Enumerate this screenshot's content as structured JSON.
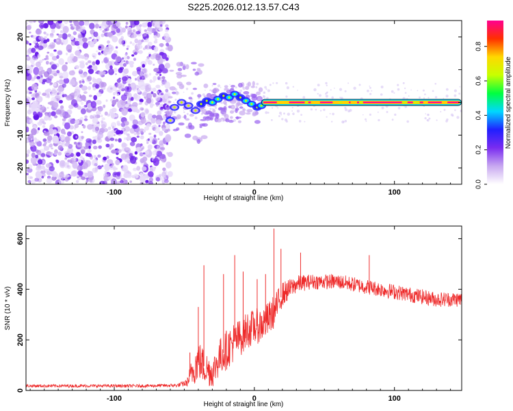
{
  "figure_title": "S225.2026.012.13.57.C43",
  "chart_data": [
    {
      "type": "heatmap",
      "title": "S225.2026.012.13.57.C43",
      "xlabel": "Height of straight line (km)",
      "ylabel": "Frequency (Hz)",
      "xlim": [
        -163,
        148
      ],
      "ylim": [
        -25,
        25
      ],
      "xticks": [
        -100,
        0,
        100
      ],
      "yticks": [
        -20,
        -10,
        0,
        10,
        20
      ],
      "noise_region_x": [
        -163,
        -60
      ],
      "transition_region_x": [
        -60,
        5
      ],
      "signal_line": {
        "frequency_hz": 0,
        "x_range": [
          5,
          148
        ],
        "amplitude": 0.93
      },
      "track_points": [
        {
          "x": -60,
          "y": -5.5
        },
        {
          "x": -57,
          "y": -1.5
        },
        {
          "x": -52,
          "y": 0
        },
        {
          "x": -47,
          "y": -1
        },
        {
          "x": -42,
          "y": -2.5
        },
        {
          "x": -38,
          "y": -0.5
        },
        {
          "x": -34,
          "y": 0.5
        },
        {
          "x": -30,
          "y": 0
        },
        {
          "x": -26,
          "y": 1
        },
        {
          "x": -22,
          "y": 2
        },
        {
          "x": -18,
          "y": 1.5
        },
        {
          "x": -14,
          "y": 2.5
        },
        {
          "x": -10,
          "y": 1.5
        },
        {
          "x": -6,
          "y": 0.5
        },
        {
          "x": -2,
          "y": -0.5
        },
        {
          "x": 2,
          "y": -1.5
        },
        {
          "x": 5,
          "y": -1
        },
        {
          "x": 8,
          "y": 0
        }
      ],
      "colorbar": {
        "label": "Normalized spectral amplitude",
        "range": [
          0,
          0.95
        ],
        "ticks": [
          0.0,
          0.2,
          0.4,
          0.6,
          0.8
        ],
        "tick_labels": [
          "0.0",
          "0.2",
          "0.4",
          "0.6",
          "0.8"
        ],
        "colormap": [
          "#ffffff",
          "#c8a8f0",
          "#7a2cf0",
          "#2020ff",
          "#00d8ff",
          "#00ff40",
          "#c8ff00",
          "#ffd800",
          "#ff3000",
          "#ff0090"
        ]
      }
    },
    {
      "type": "line",
      "xlabel": "Height of straight line (km)",
      "ylabel": "SNR (10 * v/v)",
      "xlim": [
        -163,
        148
      ],
      "ylim": [
        0,
        650
      ],
      "xticks": [
        -100,
        0,
        100
      ],
      "yticks": [
        0,
        200,
        400,
        600
      ],
      "series": [
        {
          "name": "SNR",
          "color": "#ee2a2a",
          "envelope_x": [
            -163,
            -120,
            -80,
            -55,
            -48,
            -44,
            -40,
            -35,
            -30,
            -25,
            -20,
            -15,
            -10,
            -5,
            0,
            5,
            10,
            15,
            20,
            25,
            30,
            40,
            50,
            60,
            70,
            80,
            90,
            100,
            110,
            120,
            130,
            140,
            148
          ],
          "envelope_center": [
            18,
            18,
            18,
            20,
            30,
            80,
            120,
            90,
            70,
            130,
            160,
            190,
            210,
            240,
            250,
            260,
            280,
            320,
            380,
            400,
            420,
            430,
            430,
            430,
            420,
            410,
            400,
            390,
            380,
            370,
            360,
            360,
            360
          ],
          "envelope_spread": [
            12,
            12,
            12,
            14,
            30,
            130,
            160,
            140,
            120,
            150,
            160,
            160,
            150,
            150,
            140,
            140,
            140,
            130,
            100,
            80,
            70,
            60,
            60,
            60,
            60,
            60,
            60,
            60,
            60,
            60,
            60,
            60,
            60
          ],
          "spikes": [
            {
              "x": -36,
              "y": 495
            },
            {
              "x": -40,
              "y": 330
            },
            {
              "x": -22,
              "y": 460
            },
            {
              "x": -14,
              "y": 535
            },
            {
              "x": 14,
              "y": 640
            },
            {
              "x": 19,
              "y": 560
            },
            {
              "x": 33,
              "y": 545
            },
            {
              "x": 82,
              "y": 535
            },
            {
              "x": -46,
              "y": 150
            },
            {
              "x": -8,
              "y": 470
            },
            {
              "x": 2,
              "y": 440
            },
            {
              "x": 8,
              "y": 460
            }
          ]
        }
      ]
    }
  ]
}
